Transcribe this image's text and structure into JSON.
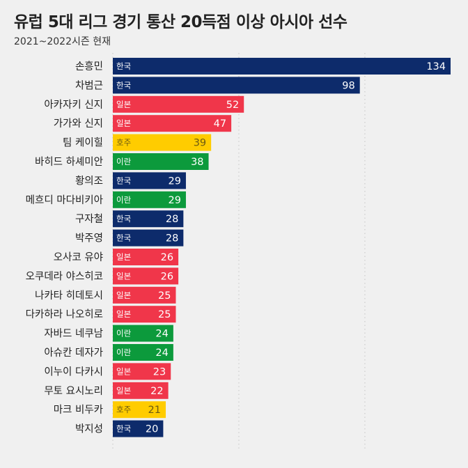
{
  "header": {
    "title": "유럽 5대 리그 경기 통산 20득점 이상 아시아 선수",
    "subtitle": "2021~2022시즌 현재"
  },
  "colors": {
    "한국": "#0d2b6b",
    "일본": "#f0364a",
    "호주": "#ffcc00",
    "이란": "#0c9a3c"
  },
  "label_colors": {
    "한국": "#ffffff",
    "일본": "#ffffff",
    "호주": "#6b5a12",
    "이란": "#ffffff"
  },
  "chart_data": {
    "type": "bar",
    "orientation": "horizontal",
    "title": "유럽 5대 리그 경기 통산 20득점 이상 아시아 선수",
    "subtitle": "2021~2022시즌 현재",
    "xlim": [
      0,
      134
    ],
    "grid": true,
    "categories": [
      "손흥민",
      "차범근",
      "아카자키 신지",
      "가가와 신지",
      "팀 케이힐",
      "바히드 하셰미안",
      "황의조",
      "메흐디 마다비키아",
      "구자철",
      "박주영",
      "오사코 유야",
      "오쿠데라 야스히코",
      "나카타 히데토시",
      "다카하라 나오히로",
      "자바드 네쿠남",
      "아슈칸 데자가",
      "이누이 다카시",
      "무토 요시노리",
      "마크 비두카",
      "박지성"
    ],
    "values": [
      134,
      98,
      52,
      47,
      39,
      38,
      29,
      29,
      28,
      28,
      26,
      26,
      25,
      25,
      24,
      24,
      23,
      22,
      21,
      20
    ],
    "countries": [
      "한국",
      "한국",
      "일본",
      "일본",
      "호주",
      "이란",
      "한국",
      "이란",
      "한국",
      "한국",
      "일본",
      "일본",
      "일본",
      "일본",
      "이란",
      "이란",
      "일본",
      "일본",
      "호주",
      "한국"
    ]
  }
}
